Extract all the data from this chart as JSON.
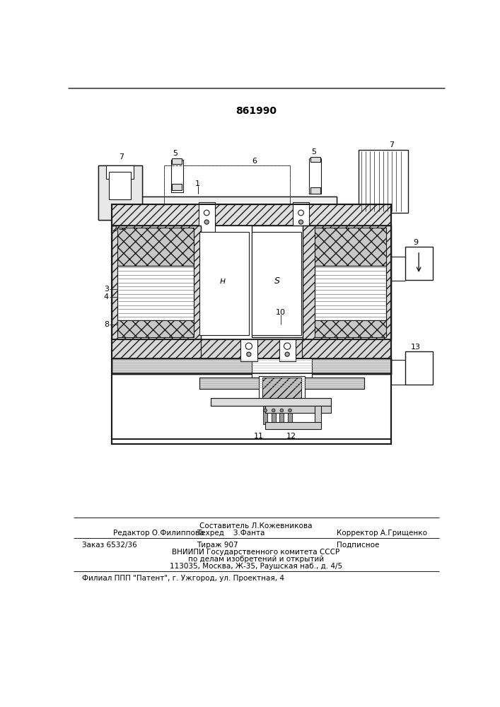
{
  "patent_number": "861990",
  "bg_color": "#f5f5f0",
  "line_color": "#1a1a1a",
  "hatch_color": "#333333",
  "footer": {
    "line1_top": "Составитель Л.Кожевникова",
    "line1_left": "Редактор О.Филиппова",
    "line1_center": "Техред    З.Фанта",
    "line1_right": "Корректор А.Грищенко",
    "line2_left": "Заказ 6532/36",
    "line2_center": "Тираж 907",
    "line2_right": "Подписное",
    "line3": "ВНИИПИ Государственного комитета СССР",
    "line4": "по делам изобретений и открытий",
    "line5": "113035, Москва, Ж-35, Раушская наб., д. 4/5",
    "line6": "Филиал ППП \"Патент\", г. Ужгород, ул. Проектная, 4"
  }
}
